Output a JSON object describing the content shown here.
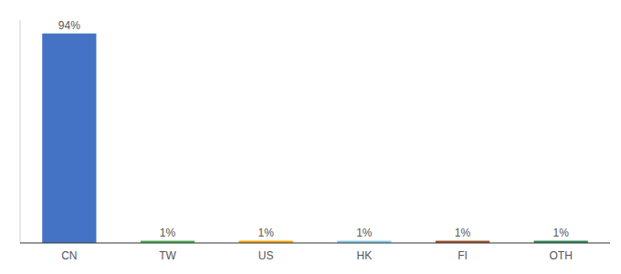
{
  "chart_data": {
    "type": "bar",
    "categories": [
      "CN",
      "TW",
      "US",
      "HK",
      "FI",
      "OTH"
    ],
    "values": [
      94,
      1,
      1,
      1,
      1,
      1
    ],
    "colors": [
      "#4472C4",
      "#4CAF50",
      "#FFA500",
      "#87CEEB",
      "#A0522D",
      "#2E8B57"
    ],
    "ylim": [
      0,
      100
    ],
    "data_labels": true,
    "value_labels": [
      "94%",
      "1%",
      "1%",
      "1%",
      "1%",
      "1%"
    ],
    "tick_labels": "x"
  }
}
